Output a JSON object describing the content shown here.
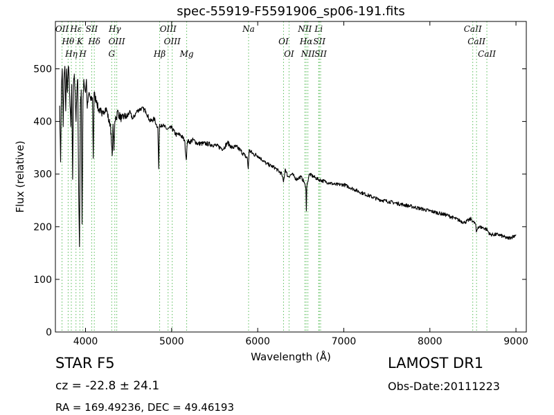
{
  "chart_data": {
    "type": "line",
    "title": "spec-55919-F5591906_sp06-191.fits",
    "xlabel": "Wavelength (Å)",
    "ylabel": "Flux (relative)",
    "xlim": [
      3650,
      9120
    ],
    "ylim": [
      0,
      590
    ],
    "xticks": [
      4000,
      5000,
      6000,
      7000,
      8000,
      9000
    ],
    "yticks": [
      0,
      100,
      200,
      300,
      400,
      500
    ],
    "grid": false,
    "colors": {
      "spectrum": "#000000",
      "lines": "#55bb55"
    },
    "series": [
      {
        "values_x": [
          3700,
          3710,
          3720,
          3730,
          3740,
          3750,
          3760,
          3770,
          3780,
          3790,
          3800,
          3810,
          3820,
          3830,
          3840,
          3850,
          3860,
          3870,
          3880,
          3890,
          3900,
          3910,
          3920,
          3930,
          3940,
          3950,
          3960,
          3970,
          3980,
          3990,
          4000,
          4010,
          4020,
          4040,
          4060,
          4080,
          4090,
          4100,
          4110,
          4130,
          4150,
          4170,
          4190,
          4210,
          4230,
          4250,
          4270,
          4290,
          4300,
          4310,
          4320,
          4330,
          4340,
          4350,
          4360,
          4370,
          4390,
          4420,
          4450,
          4480,
          4510,
          4550,
          4600,
          4650,
          4700,
          4750,
          4800,
          4820,
          4840,
          4850,
          4860,
          4870,
          4880,
          4900,
          4950,
          5000,
          5050,
          5100,
          5150,
          5170,
          5180,
          5190,
          5200,
          5250,
          5300,
          5400,
          5500,
          5600,
          5650,
          5700,
          5750,
          5800,
          5850,
          5880,
          5890,
          5900,
          5950,
          6000,
          6100,
          6200,
          6280,
          6300,
          6320,
          6350,
          6400,
          6450,
          6500,
          6540,
          6560,
          6565,
          6570,
          6580,
          6600,
          6700,
          6800,
          6900,
          7000,
          7200,
          7400,
          7600,
          7800,
          8000,
          8200,
          8400,
          8480,
          8500,
          8530,
          8540,
          8560,
          8620,
          8660,
          8700,
          8800,
          8900,
          8950,
          9000
        ],
        "values_y": [
          430,
          323,
          460,
          500,
          390,
          480,
          505,
          420,
          500,
          455,
          505,
          480,
          430,
          390,
          470,
          290,
          470,
          490,
          455,
          400,
          460,
          480,
          265,
          162,
          430,
          460,
          205,
          440,
          480,
          465,
          455,
          480,
          425,
          455,
          440,
          445,
          330,
          455,
          445,
          440,
          420,
          425,
          410,
          420,
          425,
          420,
          400,
          395,
          360,
          335,
          395,
          345,
          400,
          410,
          405,
          420,
          412,
          405,
          410,
          408,
          418,
          405,
          420,
          425,
          420,
          400,
          405,
          395,
          390,
          310,
          395,
          390,
          395,
          392,
          385,
          388,
          375,
          375,
          365,
          327,
          355,
          365,
          360,
          365,
          358,
          358,
          355,
          348,
          360,
          350,
          352,
          345,
          335,
          330,
          310,
          345,
          338,
          335,
          320,
          312,
          300,
          285,
          310,
          295,
          300,
          290,
          295,
          285,
          270,
          230,
          275,
          285,
          300,
          290,
          285,
          280,
          280,
          265,
          252,
          245,
          238,
          230,
          222,
          208,
          215,
          210,
          205,
          190,
          200,
          198,
          195,
          185,
          185,
          178,
          180,
          185
        ],
        "x_note": "sampled trace; wavelength",
        "smooth": true
      }
    ],
    "line_markers": [
      {
        "label": "OII",
        "x": 3727
      },
      {
        "label": "Hθ",
        "x": 3798
      },
      {
        "label": "Hη",
        "x": 3835
      },
      {
        "label": "Hε",
        "x": 3889
      },
      {
        "label": "K",
        "x": 3934
      },
      {
        "label": "H",
        "x": 3969
      },
      {
        "label": "SII",
        "x": 4072
      },
      {
        "label": "Hδ",
        "x": 4102
      },
      {
        "label": "G",
        "x": 4304
      },
      {
        "label": "Hγ",
        "x": 4340
      },
      {
        "label": "OIII",
        "x": 4363
      },
      {
        "label": "Hβ",
        "x": 4861
      },
      {
        "label": "OIII",
        "x": 4959
      },
      {
        "label": "OIII",
        "x": 5007
      },
      {
        "label": "Mg",
        "x": 5175
      },
      {
        "label": "Na",
        "x": 5894
      },
      {
        "label": "OI",
        "x": 6300
      },
      {
        "label": "OI",
        "x": 6364
      },
      {
        "label": "NII",
        "x": 6548
      },
      {
        "label": "Hα",
        "x": 6563
      },
      {
        "label": "NII",
        "x": 6583
      },
      {
        "label": "Li",
        "x": 6708
      },
      {
        "label": "SII",
        "x": 6716
      },
      {
        "label": "SII",
        "x": 6731
      },
      {
        "label": "CaII",
        "x": 8498
      },
      {
        "label": "CaII",
        "x": 8542
      },
      {
        "label": "CaII",
        "x": 8662
      }
    ]
  },
  "info": {
    "object_class": "STAR   F5",
    "survey": "LAMOST DR1",
    "redshift": "cz = -22.8 ± 24.1",
    "obs_date": "Obs-Date:20111223",
    "coords": "RA = 169.49236, DEC = 49.46193"
  }
}
